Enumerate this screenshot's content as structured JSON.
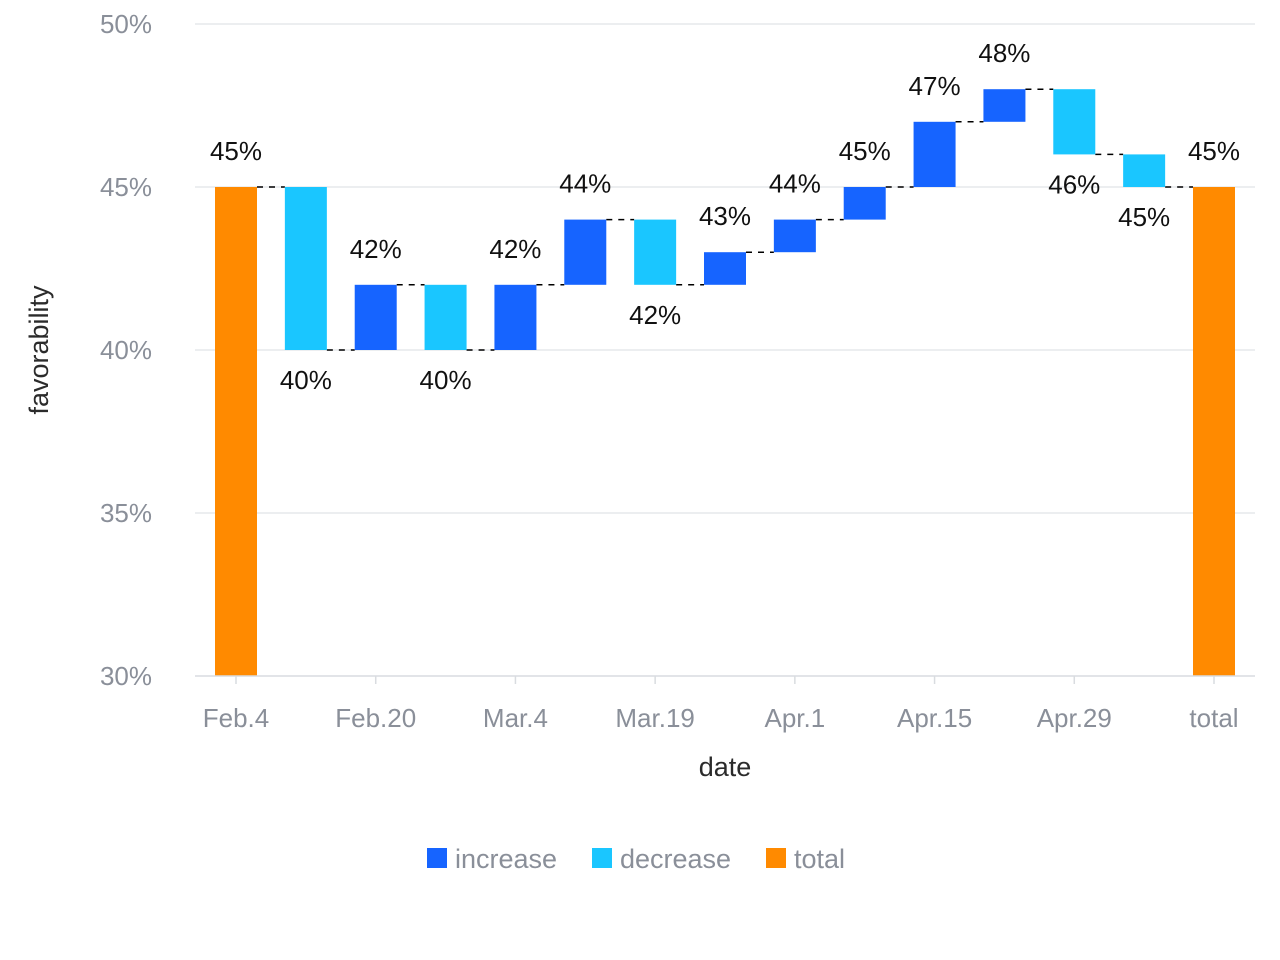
{
  "chart_data": {
    "type": "bar",
    "subtype": "waterfall",
    "xlabel": "date",
    "ylabel": "favorability",
    "ylim": [
      30,
      50
    ],
    "y_ticks": [
      "30%",
      "35%",
      "40%",
      "45%",
      "50%"
    ],
    "y_tick_values": [
      30,
      35,
      40,
      45,
      50
    ],
    "x_tick_labels": [
      "Feb.4",
      "Feb.20",
      "Mar.4",
      "Mar.19",
      "Apr.1",
      "Apr.15",
      "Apr.29",
      "total"
    ],
    "x_tick_category_index": [
      0,
      2,
      4,
      6,
      8,
      10,
      12,
      14
    ],
    "grid": true,
    "legend_position": "bottom",
    "legend": [
      {
        "key": "increase",
        "label": "increase",
        "color": "#1664ff"
      },
      {
        "key": "decrease",
        "label": "decrease",
        "color": "#1ac6ff"
      },
      {
        "key": "total",
        "label": "total",
        "color": "#ff8a00"
      }
    ],
    "bars": [
      {
        "kind": "total",
        "start": 30,
        "end": 45,
        "label": "45%"
      },
      {
        "kind": "decrease",
        "start": 45,
        "end": 40,
        "label": "40%"
      },
      {
        "kind": "increase",
        "start": 40,
        "end": 42,
        "label": "42%"
      },
      {
        "kind": "decrease",
        "start": 42,
        "end": 40,
        "label": "40%"
      },
      {
        "kind": "increase",
        "start": 40,
        "end": 42,
        "label": "42%"
      },
      {
        "kind": "increase",
        "start": 42,
        "end": 44,
        "label": "44%"
      },
      {
        "kind": "decrease",
        "start": 44,
        "end": 42,
        "label": "42%"
      },
      {
        "kind": "increase",
        "start": 42,
        "end": 43,
        "label": "43%"
      },
      {
        "kind": "increase",
        "start": 43,
        "end": 44,
        "label": "44%"
      },
      {
        "kind": "increase",
        "start": 44,
        "end": 45,
        "label": "45%"
      },
      {
        "kind": "increase",
        "start": 45,
        "end": 47,
        "label": "47%"
      },
      {
        "kind": "increase",
        "start": 47,
        "end": 48,
        "label": "48%"
      },
      {
        "kind": "decrease",
        "start": 48,
        "end": 46,
        "label": "46%"
      },
      {
        "kind": "decrease",
        "start": 46,
        "end": 45,
        "label": "45%"
      },
      {
        "kind": "total",
        "start": 30,
        "end": 45,
        "label": "45%"
      }
    ]
  }
}
